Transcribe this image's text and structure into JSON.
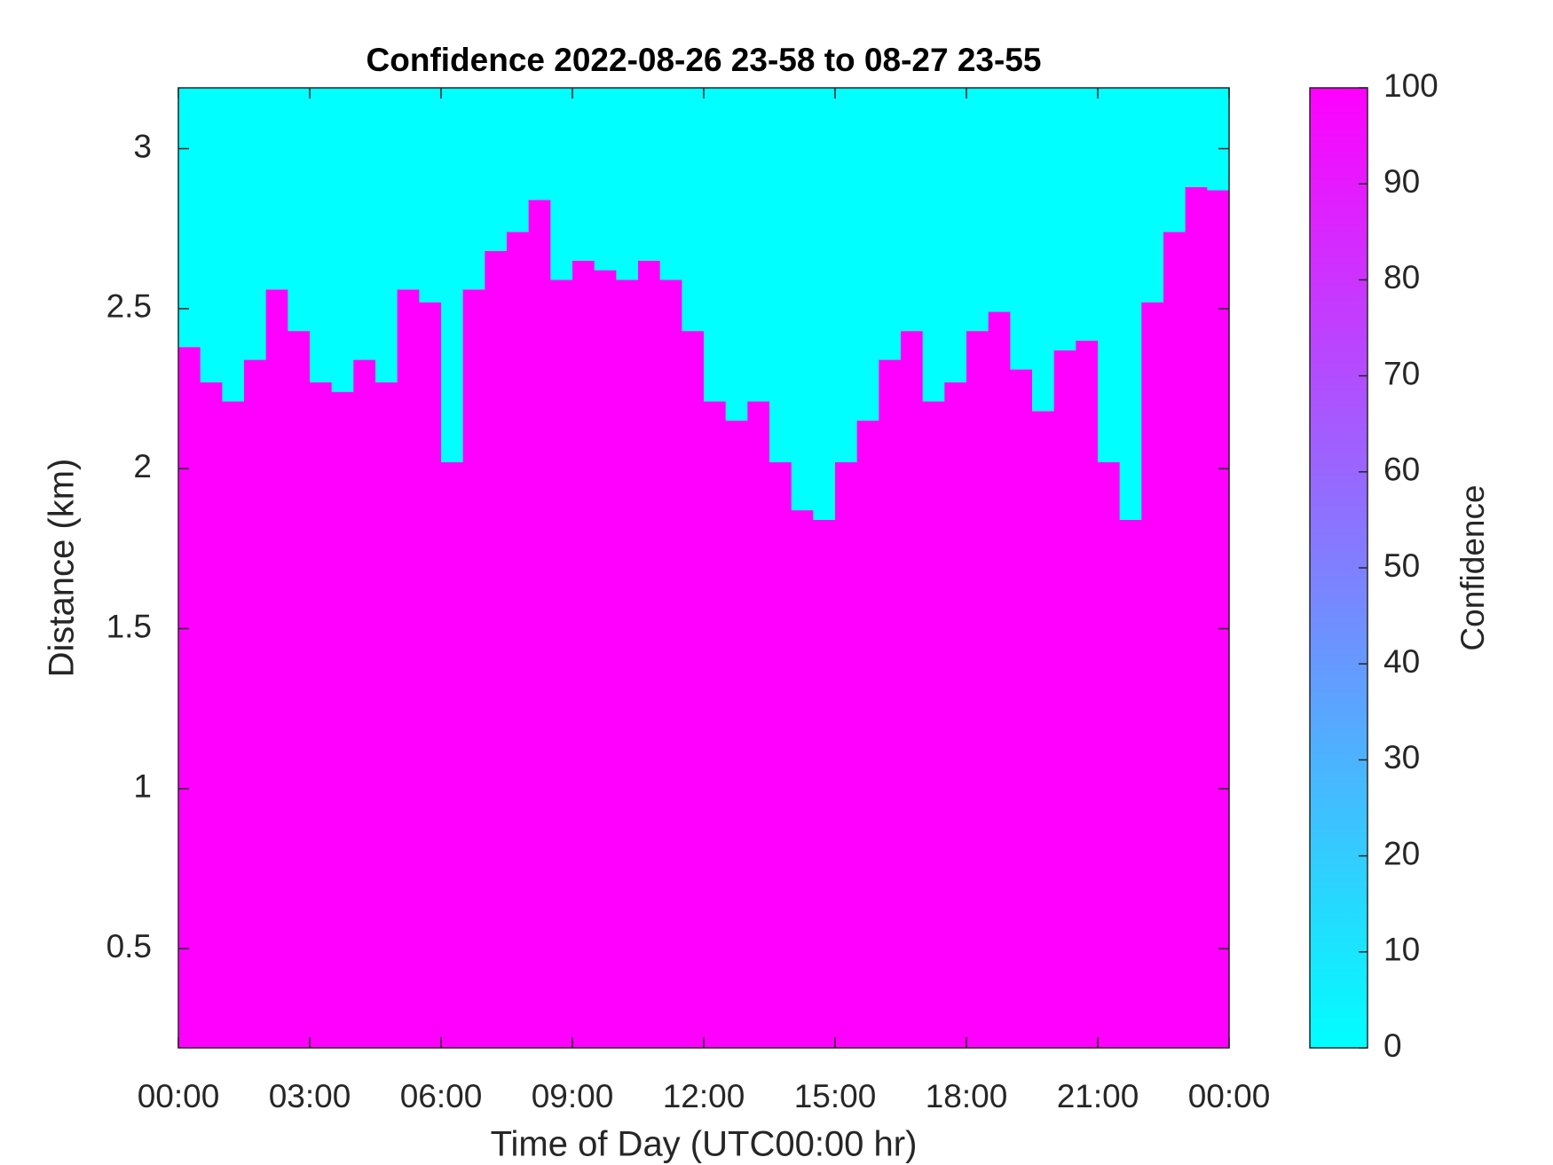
{
  "chart_data": {
    "type": "heatmap",
    "title": "Confidence 2022-08-26 23-58 to 08-27 23-55",
    "xlabel": "Time of Day (UTC00:00 hr)",
    "ylabel": "Distance (km)",
    "x": [
      0,
      0.5,
      1,
      1.5,
      2,
      2.5,
      3,
      3.5,
      4,
      4.5,
      5,
      5.5,
      6,
      6.5,
      7,
      7.5,
      8,
      8.5,
      9,
      9.5,
      10,
      10.5,
      11,
      11.5,
      12,
      12.5,
      13,
      13.5,
      14,
      14.5,
      15,
      15.5,
      16,
      16.5,
      17,
      17.5,
      18,
      18.5,
      19,
      19.5,
      20,
      20.5,
      21,
      21.5,
      22,
      22.5,
      23,
      23.5
    ],
    "boundary": [
      2.38,
      2.27,
      2.21,
      2.34,
      2.56,
      2.43,
      2.27,
      2.24,
      2.34,
      2.27,
      2.56,
      2.52,
      2.02,
      2.56,
      2.68,
      2.74,
      2.84,
      2.59,
      2.65,
      2.62,
      2.59,
      2.65,
      2.59,
      2.43,
      2.21,
      2.15,
      2.21,
      2.02,
      1.87,
      1.84,
      2.02,
      2.15,
      2.34,
      2.43,
      2.21,
      2.27,
      2.43,
      2.49,
      2.31,
      2.18,
      2.37,
      2.4,
      2.02,
      1.84,
      2.52,
      2.74,
      2.88,
      2.87
    ],
    "below_value": 100,
    "above_value": 0,
    "xlim": [
      0,
      24
    ],
    "xticks": [
      {
        "value": 0,
        "label": "00:00"
      },
      {
        "value": 3,
        "label": "03:00"
      },
      {
        "value": 6,
        "label": "06:00"
      },
      {
        "value": 9,
        "label": "09:00"
      },
      {
        "value": 12,
        "label": "12:00"
      },
      {
        "value": 15,
        "label": "15:00"
      },
      {
        "value": 18,
        "label": "18:00"
      },
      {
        "value": 21,
        "label": "21:00"
      },
      {
        "value": 24,
        "label": "00:00"
      }
    ],
    "ylim": [
      0.19,
      3.19
    ],
    "yticks": [
      0.5,
      1,
      1.5,
      2,
      2.5,
      3
    ],
    "colorbar_label": "Confidence",
    "clim": [
      0,
      100
    ],
    "cticks": [
      0,
      10,
      20,
      30,
      40,
      50,
      60,
      70,
      80,
      90,
      100
    ],
    "colormap": [
      "#00ffff",
      "#ff00ff"
    ]
  }
}
